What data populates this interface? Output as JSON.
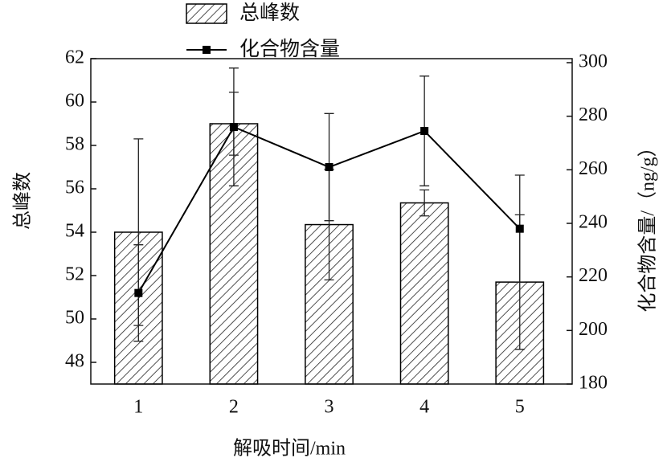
{
  "chart_data": {
    "type": "bar",
    "xlabel": "解吸时间/min",
    "ylabel": "总峰数",
    "y2label": "化合物含量/（ng/g）",
    "categories": [
      "1",
      "2",
      "3",
      "4",
      "5"
    ],
    "series": [
      {
        "name": "总峰数",
        "type": "bar",
        "axis": "y",
        "color": "#000000",
        "values": [
          54.0,
          59.0,
          54.35,
          55.35,
          51.7
        ],
        "errors": [
          4.3,
          1.45,
          2.55,
          0.6,
          3.1
        ]
      },
      {
        "name": "化合物含量",
        "type": "line",
        "axis": "y2",
        "color": "#000000",
        "values": [
          214,
          276,
          261,
          274.5,
          238
        ],
        "errors": [
          18,
          22,
          20,
          20.5,
          20
        ]
      }
    ],
    "ylim": [
      47,
      62
    ],
    "yticks": [
      48,
      50,
      52,
      54,
      56,
      58,
      60,
      62
    ],
    "y2lim": [
      180,
      301.5
    ],
    "y2ticks": [
      180,
      200,
      220,
      240,
      260,
      280,
      300
    ],
    "legend": "top"
  }
}
